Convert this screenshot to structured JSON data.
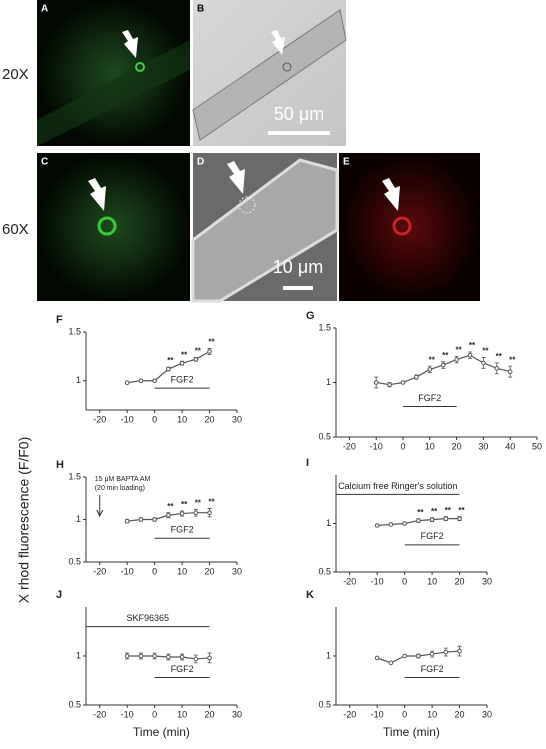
{
  "panels": {
    "row_labels": [
      "20X",
      "60X"
    ],
    "image_labels": [
      "A",
      "B",
      "C",
      "D",
      "E"
    ],
    "scale_bars": [
      "50 μm",
      "10 μm"
    ]
  },
  "y_axis_label": "X rhod fluorescence (F/F0)",
  "chart_data": [
    {
      "type": "line",
      "title": "F",
      "color": "#555555",
      "x": [
        -10,
        -5,
        0,
        5,
        10,
        15,
        20
      ],
      "values": [
        0.98,
        1.0,
        1.0,
        1.12,
        1.18,
        1.22,
        1.3
      ],
      "errors": [
        0.01,
        0.01,
        0.01,
        0.02,
        0.02,
        0.02,
        0.03
      ],
      "significance": [
        null,
        null,
        null,
        "**",
        "**",
        "**",
        "**"
      ],
      "xlim": [
        -25,
        30
      ],
      "xticks": [
        -20,
        -10,
        0,
        10,
        20,
        30
      ],
      "ylim": [
        0.7,
        1.5
      ],
      "yticks": [
        1.0,
        1.5
      ],
      "bars": [
        {
          "label": "FGF2",
          "range": [
            0,
            20
          ]
        }
      ]
    },
    {
      "type": "line",
      "title": "G",
      "color": "#555555",
      "x": [
        -10,
        -5,
        0,
        5,
        10,
        15,
        20,
        25,
        30,
        35,
        40
      ],
      "values": [
        1.0,
        0.98,
        1.0,
        1.05,
        1.12,
        1.16,
        1.21,
        1.25,
        1.18,
        1.13,
        1.1
      ],
      "errors": [
        0.05,
        0.02,
        0.01,
        0.02,
        0.03,
        0.03,
        0.03,
        0.03,
        0.05,
        0.05,
        0.05
      ],
      "significance": [
        null,
        null,
        null,
        null,
        "**",
        "**",
        "**",
        "**",
        "**",
        "**",
        "**"
      ],
      "xlim": [
        -25,
        50
      ],
      "xticks": [
        -20,
        -10,
        0,
        10,
        20,
        30,
        40,
        50
      ],
      "ylim": [
        0.5,
        1.5
      ],
      "yticks": [
        0.5,
        1.0,
        1.5
      ],
      "bars": [
        {
          "label": "FGF2",
          "range": [
            0,
            20
          ]
        }
      ]
    },
    {
      "type": "line",
      "title": "H",
      "color": "#555555",
      "x": [
        -10,
        -5,
        0,
        5,
        10,
        15,
        20
      ],
      "values": [
        0.98,
        1.0,
        1.0,
        1.05,
        1.07,
        1.08,
        1.08
      ],
      "errors": [
        0.02,
        0.02,
        0.02,
        0.03,
        0.03,
        0.04,
        0.05
      ],
      "significance": [
        null,
        null,
        null,
        "**",
        "**",
        "**",
        "**"
      ],
      "xlim": [
        -25,
        30
      ],
      "xticks": [
        -20,
        -10,
        0,
        10,
        20,
        30
      ],
      "ylim": [
        0.5,
        1.5
      ],
      "yticks": [
        0.5,
        1.0,
        1.5
      ],
      "bars": [
        {
          "label": "FGF2",
          "range": [
            0,
            20
          ]
        }
      ],
      "note": [
        "15 μM BAPTA AM",
        "(20 min loading)"
      ],
      "note_x": -20
    },
    {
      "type": "line",
      "title": "I",
      "color": "#555555",
      "x": [
        -10,
        -5,
        0,
        5,
        10,
        15,
        20
      ],
      "values": [
        0.98,
        0.99,
        1.0,
        1.03,
        1.04,
        1.05,
        1.05
      ],
      "errors": [
        0.01,
        0.01,
        0.01,
        0.02,
        0.02,
        0.02,
        0.02
      ],
      "significance": [
        null,
        null,
        null,
        "**",
        "**",
        "**",
        "**"
      ],
      "xlim": [
        -25,
        30
      ],
      "xticks": [
        -20,
        -10,
        0,
        10,
        20,
        30
      ],
      "ylim": [
        0.5,
        1.5
      ],
      "yticks": [
        0.5,
        1.0
      ],
      "bars": [
        {
          "label": "Calcium free Ringer's solution",
          "range": [
            -25,
            20
          ]
        },
        {
          "label": "FGF2",
          "range": [
            0,
            20
          ]
        }
      ]
    },
    {
      "type": "line",
      "title": "J",
      "color": "#555555",
      "x": [
        -10,
        -5,
        0,
        5,
        10,
        15,
        20
      ],
      "values": [
        1.0,
        1.0,
        1.0,
        0.99,
        0.99,
        0.97,
        0.98
      ],
      "errors": [
        0.03,
        0.03,
        0.03,
        0.03,
        0.03,
        0.04,
        0.05
      ],
      "significance": [
        null,
        null,
        null,
        null,
        null,
        null,
        null
      ],
      "xlim": [
        -25,
        30
      ],
      "xticks": [
        -20,
        -10,
        0,
        10,
        20,
        30
      ],
      "ylim": [
        0.5,
        1.5
      ],
      "yticks": [
        0.5,
        1.0
      ],
      "bars": [
        {
          "label": "SKF96365",
          "range": [
            -25,
            20
          ]
        },
        {
          "label": "FGF2",
          "range": [
            0,
            20
          ]
        }
      ],
      "xlabel": "Time (min)"
    },
    {
      "type": "line",
      "title": "K",
      "color": "#555555",
      "x": [
        -10,
        -5,
        0,
        5,
        10,
        15,
        20
      ],
      "values": [
        0.98,
        0.93,
        1.0,
        1.0,
        1.02,
        1.04,
        1.05
      ],
      "errors": [
        0.01,
        0.01,
        0.01,
        0.02,
        0.03,
        0.04,
        0.05
      ],
      "significance": [
        null,
        null,
        null,
        null,
        null,
        null,
        null
      ],
      "xlim": [
        -25,
        30
      ],
      "xticks": [
        -20,
        -10,
        0,
        10,
        20,
        30
      ],
      "ylim": [
        0.5,
        1.5
      ],
      "yticks": [
        0.5,
        1.0
      ],
      "bars": [
        {
          "label": "FGF2",
          "range": [
            0,
            20
          ]
        }
      ],
      "xlabel": "Time (min)"
    }
  ]
}
